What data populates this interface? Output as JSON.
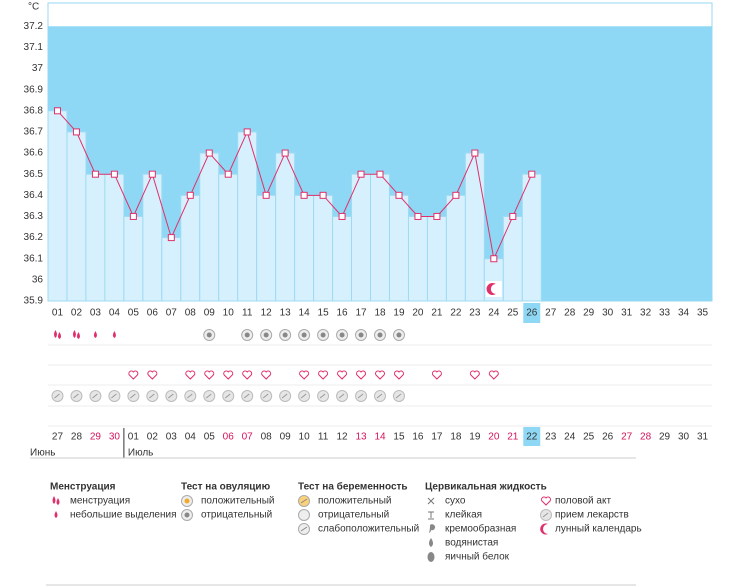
{
  "chart_data": {
    "type": "line",
    "y_label": "°C",
    "categories": [
      "01",
      "02",
      "03",
      "04",
      "05",
      "06",
      "07",
      "08",
      "09",
      "10",
      "11",
      "12",
      "13",
      "14",
      "15",
      "16",
      "17",
      "18",
      "19",
      "20",
      "21",
      "22",
      "23",
      "24",
      "25",
      "26",
      "27",
      "28",
      "29",
      "30",
      "31",
      "32",
      "33",
      "34",
      "35"
    ],
    "series": [
      {
        "color": "#e0306a",
        "values": [
          36.8,
          36.7,
          36.5,
          36.5,
          36.3,
          36.5,
          36.2,
          36.4,
          36.6,
          36.5,
          36.7,
          36.4,
          36.6,
          36.4,
          36.4,
          36.3,
          36.5,
          36.5,
          36.4,
          36.3,
          36.3,
          36.4,
          36.6,
          36.1,
          36.3,
          36.5,
          null,
          null,
          null,
          null,
          null,
          null,
          null,
          null,
          null
        ]
      }
    ],
    "ylim": [
      35.9,
      37.31
    ],
    "yticks": [
      35.9,
      36,
      36.1,
      36.2,
      36.3,
      36.4,
      36.5,
      36.6,
      36.7,
      36.8,
      36.9,
      37,
      37.1,
      37.2
    ],
    "today": "26",
    "moon_day": "24"
  },
  "icon_rows": [
    [
      "heavy",
      "heavy",
      "light",
      "light",
      null,
      null,
      null,
      null,
      "ovulation_negative",
      null,
      "ovulation_negative",
      "ovulation_negative",
      "ovulation_negative",
      "ovulation_negative",
      "ovulation_negative",
      "ovulation_negative",
      "ovulation_negative",
      "ovulation_negative",
      "ovulation_negative",
      null,
      null,
      null,
      null,
      null,
      null,
      null,
      null,
      null,
      null,
      null,
      null,
      null,
      null,
      null,
      null
    ],
    [
      null,
      null,
      null,
      null,
      null,
      null,
      null,
      null,
      null,
      null,
      null,
      null,
      null,
      null,
      null,
      null,
      null,
      null,
      null,
      null,
      null,
      null,
      null,
      null,
      null,
      null,
      null,
      null,
      null,
      null,
      null,
      null,
      null,
      null,
      null
    ],
    [
      null,
      null,
      null,
      null,
      "sex",
      "sex",
      null,
      "sex",
      "sex",
      "sex",
      "sex",
      "sex",
      null,
      "sex",
      "sex",
      "sex",
      "sex",
      "sex",
      "sex",
      null,
      "sex",
      null,
      "sex",
      "sex",
      null,
      null,
      null,
      null,
      null,
      null,
      null,
      null,
      null,
      null,
      null
    ],
    [
      "medication",
      "medication",
      "medication",
      "medication",
      "medication",
      "medication",
      "medication",
      "medication",
      "medication",
      "medication",
      "medication",
      "medication",
      "medication",
      "medication",
      "medication",
      "medication",
      "medication",
      "medication",
      "medication",
      null,
      null,
      null,
      null,
      null,
      null,
      null,
      null,
      null,
      null,
      null,
      null,
      null,
      null,
      null,
      null
    ],
    [
      null,
      null,
      null,
      null,
      null,
      null,
      null,
      null,
      null,
      null,
      null,
      null,
      null,
      null,
      null,
      null,
      null,
      null,
      null,
      null,
      null,
      null,
      null,
      null,
      null,
      null,
      null,
      null,
      null,
      null,
      null,
      null,
      null,
      null,
      null
    ]
  ],
  "calendar": {
    "dates": [
      "27",
      "28",
      "29",
      "30",
      "01",
      "02",
      "03",
      "04",
      "05",
      "06",
      "07",
      "08",
      "09",
      "10",
      "11",
      "12",
      "13",
      "14",
      "15",
      "16",
      "17",
      "18",
      "19",
      "20",
      "21",
      "22",
      "23",
      "24",
      "25",
      "26",
      "27",
      "28",
      "29",
      "30",
      "31"
    ],
    "red": [
      false,
      false,
      true,
      true,
      false,
      false,
      false,
      false,
      false,
      true,
      true,
      false,
      false,
      false,
      false,
      false,
      true,
      true,
      false,
      false,
      false,
      false,
      false,
      true,
      true,
      false,
      false,
      false,
      false,
      false,
      true,
      true,
      false,
      false,
      false
    ],
    "months": [
      "Июнь",
      "Июль"
    ]
  },
  "legend": [
    {
      "title": "Менструация",
      "items": [
        {
          "label": "менструация",
          "icon": "heavy"
        },
        {
          "label": "небольшие выделения",
          "icon": "light"
        }
      ]
    },
    {
      "title": "Тест на овуляцию",
      "items": [
        {
          "label": "положительный",
          "icon": "ovulation_positive"
        },
        {
          "label": "отрицательный",
          "icon": "ovulation_negative"
        }
      ]
    },
    {
      "title": "Тест на беременность",
      "items": [
        {
          "label": "положительный",
          "icon": "preg_positive"
        },
        {
          "label": "отрицательный",
          "icon": "preg_negative"
        },
        {
          "label": "слабоположительный",
          "icon": "preg_weak"
        }
      ]
    },
    {
      "title": "Цервикальная жидкость",
      "items": [
        {
          "label": "сухо",
          "icon": "dry"
        },
        {
          "label": "клейкая",
          "icon": "sticky"
        },
        {
          "label": "кремообразная",
          "icon": "creamy"
        },
        {
          "label": "водянистая",
          "icon": "watery"
        },
        {
          "label": "яичный белок",
          "icon": "eggwhite"
        }
      ]
    }
  ],
  "legend_extra": [
    {
      "label": "половой акт",
      "icon": "sex"
    },
    {
      "label": "прием лекарств",
      "icon": "medication"
    },
    {
      "label": "лунный календарь",
      "icon": "moon"
    }
  ]
}
